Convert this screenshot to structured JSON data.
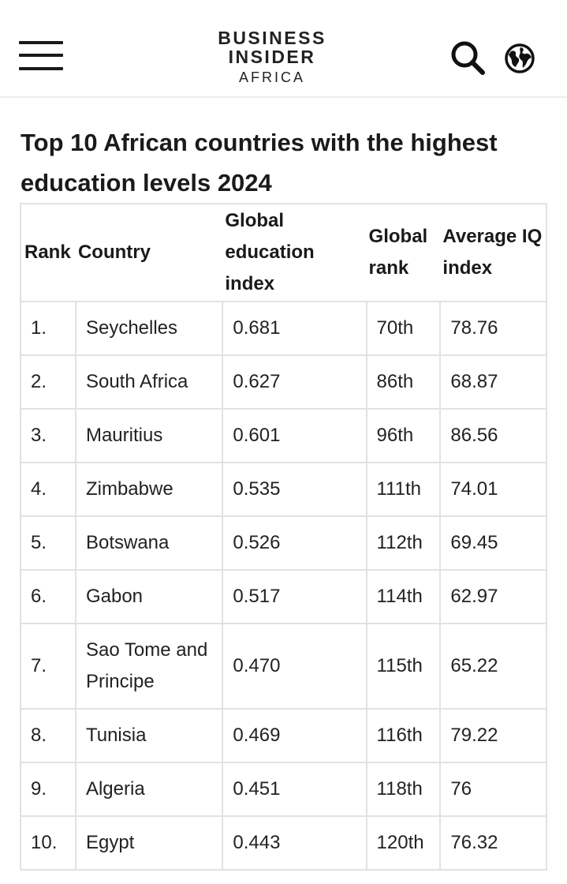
{
  "header": {
    "logo": {
      "line1": "BUSINESS",
      "line2": "INSIDER",
      "line3": "AFRICA"
    },
    "icons": {
      "menu": "hamburger-menu-icon",
      "search": "search-icon",
      "region": "globe-icon"
    }
  },
  "article": {
    "title": "Top 10 African countries with the highest education levels 2024"
  },
  "table": {
    "columns": [
      "Rank",
      "Country",
      "Global education index",
      "Global rank",
      "Average IQ index"
    ],
    "rows": [
      {
        "rank": "1.",
        "country": "Seychelles",
        "index": "0.681",
        "global_rank": "70th",
        "iq": "78.76"
      },
      {
        "rank": "2.",
        "country": "South Africa",
        "index": "0.627",
        "global_rank": "86th",
        "iq": "68.87"
      },
      {
        "rank": "3.",
        "country": "Mauritius",
        "index": "0.601",
        "global_rank": "96th",
        "iq": "86.56"
      },
      {
        "rank": "4.",
        "country": "Zimbabwe",
        "index": "0.535",
        "global_rank": "111th",
        "iq": "74.01"
      },
      {
        "rank": "5.",
        "country": "Botswana",
        "index": "0.526",
        "global_rank": "112th",
        "iq": "69.45"
      },
      {
        "rank": "6.",
        "country": "Gabon",
        "index": "0.517",
        "global_rank": "114th",
        "iq": "62.97"
      },
      {
        "rank": "7.",
        "country": "Sao Tome and Principe",
        "index": "0.470",
        "global_rank": "115th",
        "iq": "65.22"
      },
      {
        "rank": "8.",
        "country": "Tunisia",
        "index": "0.469",
        "global_rank": "116th",
        "iq": "79.22"
      },
      {
        "rank": "9.",
        "country": "Algeria",
        "index": "0.451",
        "global_rank": "118th",
        "iq": "76"
      },
      {
        "rank": "10.",
        "country": "Egypt",
        "index": "0.443",
        "global_rank": "120th",
        "iq": "76.32"
      }
    ]
  }
}
